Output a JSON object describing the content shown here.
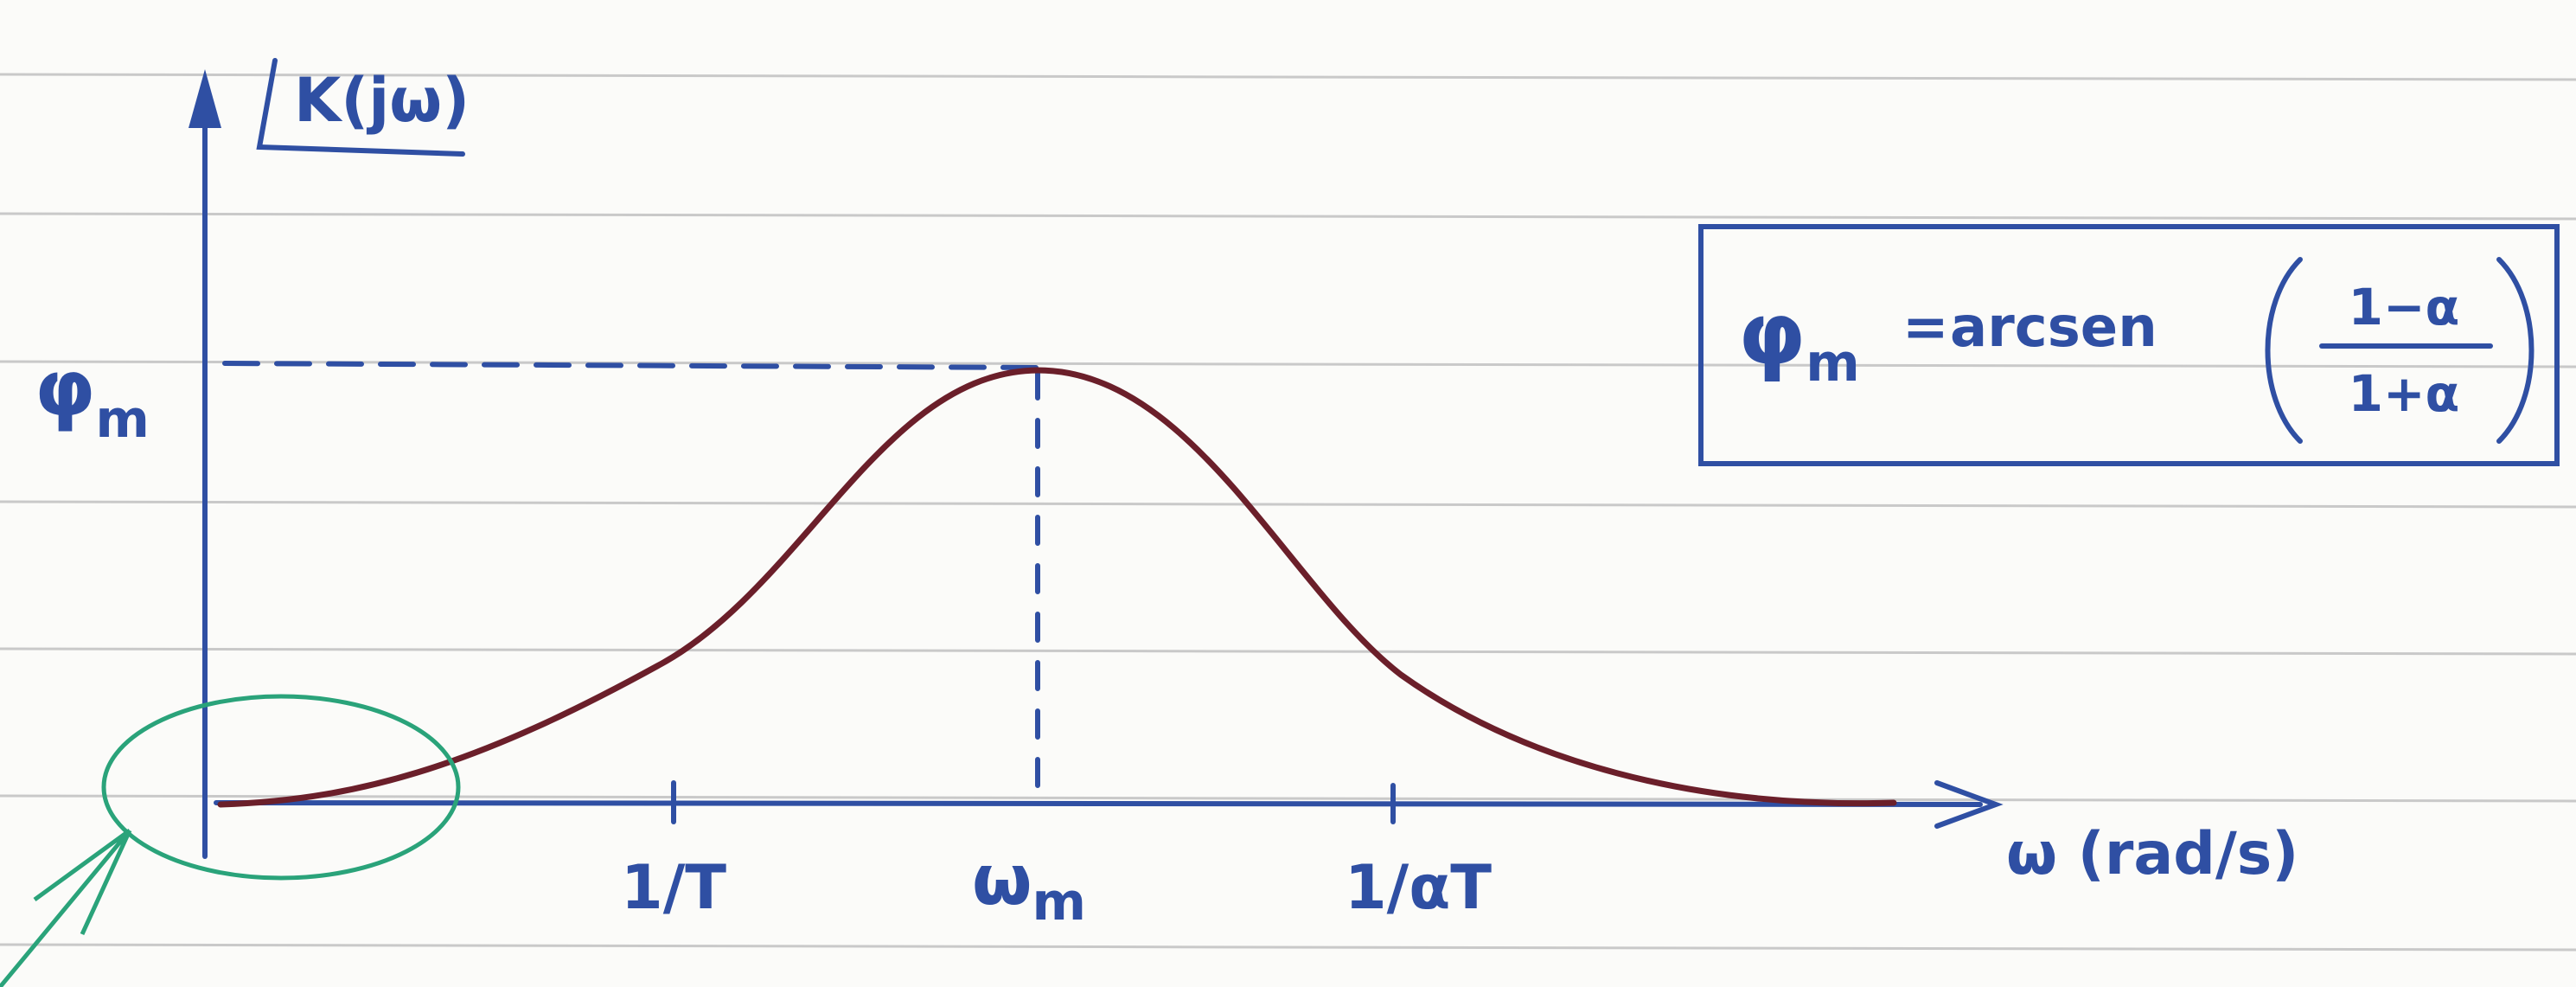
{
  "y_axis_label": "K(jω)",
  "y_marker": {
    "symbol": "φ",
    "subscript": "m"
  },
  "x_axis_label": "ω (rad/s)",
  "x_ticks": [
    {
      "main": "1/T"
    },
    {
      "main": "ω",
      "subscript": "m"
    },
    {
      "main": "1/αT"
    }
  ],
  "formula": {
    "lhs": "φ",
    "lhs_subscript": "m",
    "equals": "=",
    "function": "arcsen",
    "numerator": "1−α",
    "denominator": "1+α"
  }
}
